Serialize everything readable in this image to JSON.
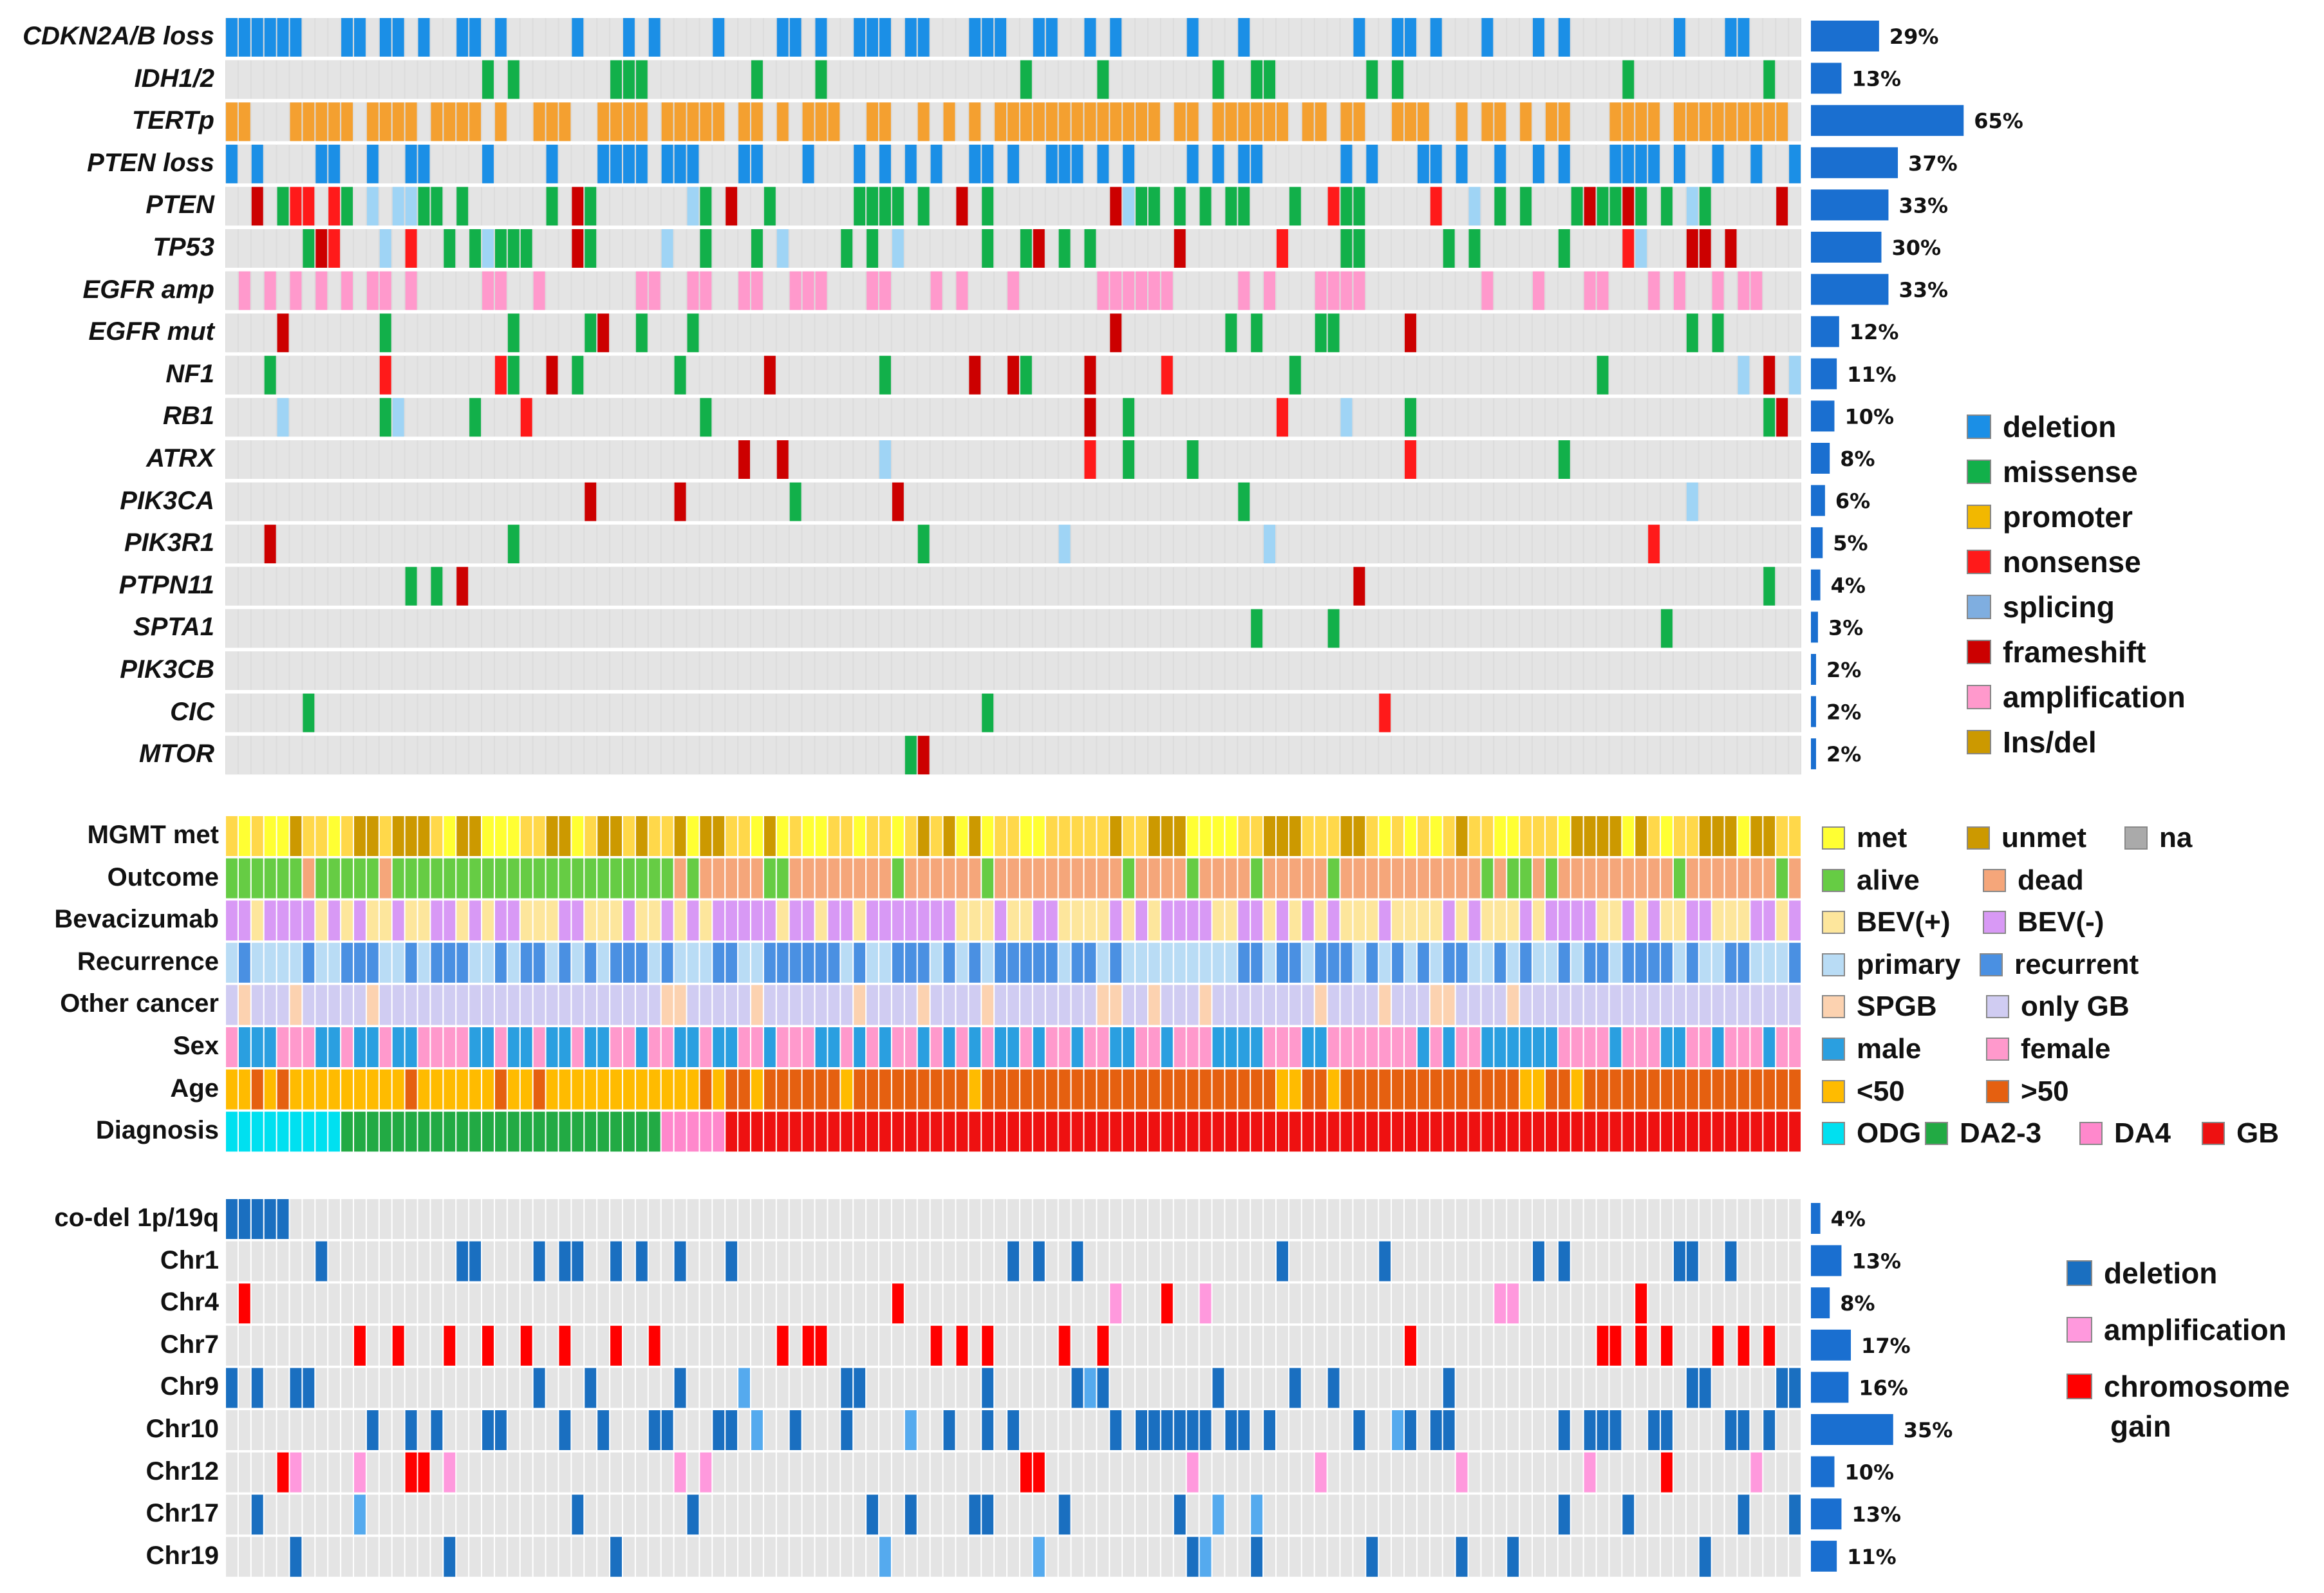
{
  "chart_data": [
    {
      "type": "heatmap",
      "panel": "mutations",
      "n_samples": 123,
      "rows": [
        {
          "label": "CDKN2A/B loss",
          "percent_label": "29%",
          "percent": 29
        },
        {
          "label": "IDH1/2",
          "percent_label": "13%",
          "percent": 13
        },
        {
          "label": "TERTp",
          "percent_label": "65%",
          "percent": 65
        },
        {
          "label": "PTEN loss",
          "percent_label": "37%",
          "percent": 37
        },
        {
          "label": "PTEN",
          "percent_label": "33%",
          "percent": 33
        },
        {
          "label": "TP53",
          "percent_label": "30%",
          "percent": 30
        },
        {
          "label": "EGFR amp",
          "percent_label": "33%",
          "percent": 33
        },
        {
          "label": "EGFR mut",
          "percent_label": "12%",
          "percent": 12
        },
        {
          "label": "NF1",
          "percent_label": "11%",
          "percent": 11
        },
        {
          "label": "RB1",
          "percent_label": "10%",
          "percent": 10
        },
        {
          "label": "ATRX",
          "percent_label": "8%",
          "percent": 8
        },
        {
          "label": "PIK3CA",
          "percent_label": "6%",
          "percent": 6
        },
        {
          "label": "PIK3R1",
          "percent_label": "5%",
          "percent": 5
        },
        {
          "label": "PTPN11",
          "percent_label": "4%",
          "percent": 4
        },
        {
          "label": "SPTA1",
          "percent_label": "3%",
          "percent": 3
        },
        {
          "label": "PIK3CB",
          "percent_label": "2%",
          "percent": 2
        },
        {
          "label": "CIC",
          "percent_label": "2%",
          "percent": 2
        },
        {
          "label": "MTOR",
          "percent_label": "2%",
          "percent": 2
        }
      ],
      "legend": [
        {
          "label": "deletion",
          "color": "#1b8fe6"
        },
        {
          "label": "missense",
          "color": "#12b04a"
        },
        {
          "label": "promoter",
          "color": "#f2b800"
        },
        {
          "label": "nonsense",
          "color": "#ff1a1a"
        },
        {
          "label": "splicing",
          "color": "#7faee0"
        },
        {
          "label": "frameshift",
          "color": "#cc0000"
        },
        {
          "label": "amplification",
          "color": "#ff99cc"
        },
        {
          "label": "Ins/del",
          "color": "#cc9900"
        }
      ],
      "bar_color": "#1a6fd0"
    },
    {
      "type": "heatmap",
      "panel": "clinical",
      "rows": [
        {
          "label": "MGMT met"
        },
        {
          "label": "Outcome"
        },
        {
          "label": "Bevacizumab"
        },
        {
          "label": "Recurrence"
        },
        {
          "label": "Other cancer"
        },
        {
          "label": "Sex"
        },
        {
          "label": "Age"
        },
        {
          "label": "Diagnosis"
        }
      ],
      "legend_rows": [
        [
          {
            "label": "met",
            "color": "#ffff33"
          },
          {
            "label": "unmet",
            "color": "#cc9900"
          },
          {
            "label": "na",
            "color": "#aaaaaa"
          }
        ],
        [
          {
            "label": "alive",
            "color": "#66cc44"
          },
          {
            "label": "dead",
            "color": "#f5a67a"
          }
        ],
        [
          {
            "label": "BEV(+)",
            "color": "#fde69c"
          },
          {
            "label": "BEV(-)",
            "color": "#d899f5"
          }
        ],
        [
          {
            "label": "primary",
            "color": "#b9dcf5"
          },
          {
            "label": "recurrent",
            "color": "#4a90e2"
          }
        ],
        [
          {
            "label": "SPGB",
            "color": "#fcd2b0"
          },
          {
            "label": "only GB",
            "color": "#d0ccf2"
          }
        ],
        [
          {
            "label": "male",
            "color": "#2a9fe0"
          },
          {
            "label": "female",
            "color": "#ff99cc"
          }
        ],
        [
          {
            "label": "<50",
            "color": "#ffbb00"
          },
          {
            "label": ">50",
            "color": "#e56010"
          }
        ],
        [
          {
            "label": "ODG",
            "color": "#00e0f0"
          },
          {
            "label": "DA2-3",
            "color": "#22aa44"
          },
          {
            "label": "DA4",
            "color": "#ff88cc"
          },
          {
            "label": "GB",
            "color": "#ee1111"
          }
        ]
      ]
    },
    {
      "type": "heatmap",
      "panel": "chromosomes",
      "rows": [
        {
          "label": "co-del 1p/19q",
          "percent_label": "4%",
          "percent": 4
        },
        {
          "label": "Chr1",
          "percent_label": "13%",
          "percent": 13
        },
        {
          "label": "Chr4",
          "percent_label": "8%",
          "percent": 8
        },
        {
          "label": "Chr7",
          "percent_label": "17%",
          "percent": 17
        },
        {
          "label": "Chr9",
          "percent_label": "16%",
          "percent": 16
        },
        {
          "label": "Chr10",
          "percent_label": "35%",
          "percent": 35
        },
        {
          "label": "Chr12",
          "percent_label": "10%",
          "percent": 10
        },
        {
          "label": "Chr17",
          "percent_label": "13%",
          "percent": 13
        },
        {
          "label": "Chr19",
          "percent_label": "11%",
          "percent": 11
        }
      ],
      "legend": [
        {
          "label": "deletion",
          "color": "#1a6fc0"
        },
        {
          "label": "amplification",
          "color": "#ff99dd"
        },
        {
          "label": "chromosome",
          "label2": "gain",
          "color": "#ff0000"
        }
      ],
      "bar_color": "#1a6fd0"
    }
  ]
}
